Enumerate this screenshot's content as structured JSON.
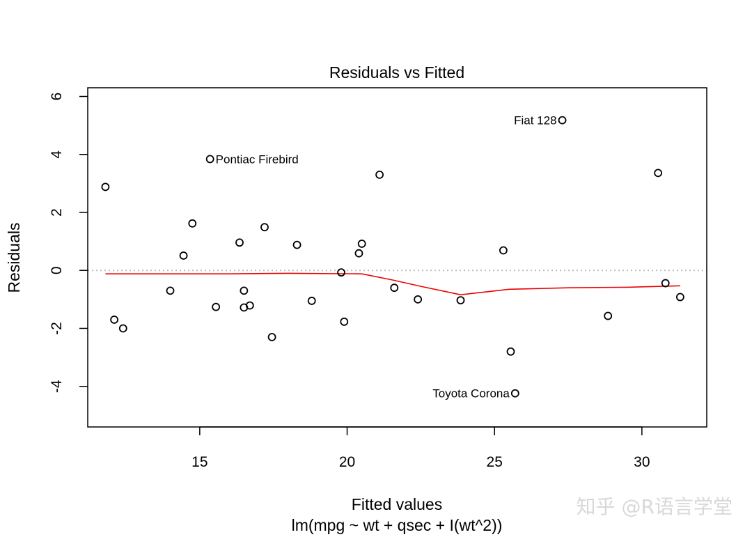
{
  "chart_data": {
    "type": "scatter",
    "title": "Residuals vs Fitted",
    "xlabel": "Fitted values",
    "xlabel_sub": "lm(mpg ~ wt + qsec + I(wt^2))",
    "ylabel": "Residuals",
    "xlim": [
      11.2,
      32.2
    ],
    "ylim": [
      -5.4,
      6.3
    ],
    "xticks": [
      15,
      20,
      25,
      30
    ],
    "yticks": [
      -4,
      -2,
      0,
      2,
      4,
      6
    ],
    "reference_line_y": 0,
    "grid": false,
    "points": [
      {
        "x": 11.8,
        "y": 2.88
      },
      {
        "x": 12.1,
        "y": -1.7
      },
      {
        "x": 12.4,
        "y": -2.0
      },
      {
        "x": 14.0,
        "y": -0.7
      },
      {
        "x": 14.45,
        "y": 0.51
      },
      {
        "x": 14.75,
        "y": 1.62
      },
      {
        "x": 15.35,
        "y": 3.84,
        "label": "Pontiac Firebird"
      },
      {
        "x": 15.55,
        "y": -1.26
      },
      {
        "x": 16.35,
        "y": 0.96
      },
      {
        "x": 16.5,
        "y": -0.7
      },
      {
        "x": 16.5,
        "y": -1.28
      },
      {
        "x": 16.7,
        "y": -1.21
      },
      {
        "x": 17.2,
        "y": 1.49
      },
      {
        "x": 17.45,
        "y": -2.3
      },
      {
        "x": 18.3,
        "y": 0.88
      },
      {
        "x": 18.8,
        "y": -1.05
      },
      {
        "x": 19.8,
        "y": -0.07
      },
      {
        "x": 19.9,
        "y": -1.77
      },
      {
        "x": 20.4,
        "y": 0.59
      },
      {
        "x": 20.5,
        "y": 0.92
      },
      {
        "x": 21.1,
        "y": 3.3
      },
      {
        "x": 21.6,
        "y": -0.6
      },
      {
        "x": 22.4,
        "y": -1.0
      },
      {
        "x": 23.85,
        "y": -1.03
      },
      {
        "x": 25.3,
        "y": 0.69
      },
      {
        "x": 25.55,
        "y": -2.8
      },
      {
        "x": 25.7,
        "y": -4.24,
        "label": "Toyota Corona"
      },
      {
        "x": 27.3,
        "y": 5.18,
        "label": "Fiat 128"
      },
      {
        "x": 28.85,
        "y": -1.57
      },
      {
        "x": 30.55,
        "y": 3.36
      },
      {
        "x": 30.8,
        "y": -0.44
      },
      {
        "x": 31.3,
        "y": -0.92
      }
    ],
    "smoother": {
      "x": [
        11.8,
        14.0,
        16.0,
        18.0,
        20.5,
        21.5,
        22.5,
        23.85,
        25.5,
        27.5,
        29.5,
        31.3
      ],
      "y": [
        -0.12,
        -0.12,
        -0.12,
        -0.1,
        -0.12,
        -0.32,
        -0.55,
        -0.84,
        -0.65,
        -0.6,
        -0.58,
        -0.53
      ]
    },
    "colors": {
      "points": "#000000",
      "smoother": "#ee0000",
      "reference_line": "#bebebe",
      "watermark": "#d8d8d8"
    }
  },
  "watermark": "知乎 @R语言学堂"
}
